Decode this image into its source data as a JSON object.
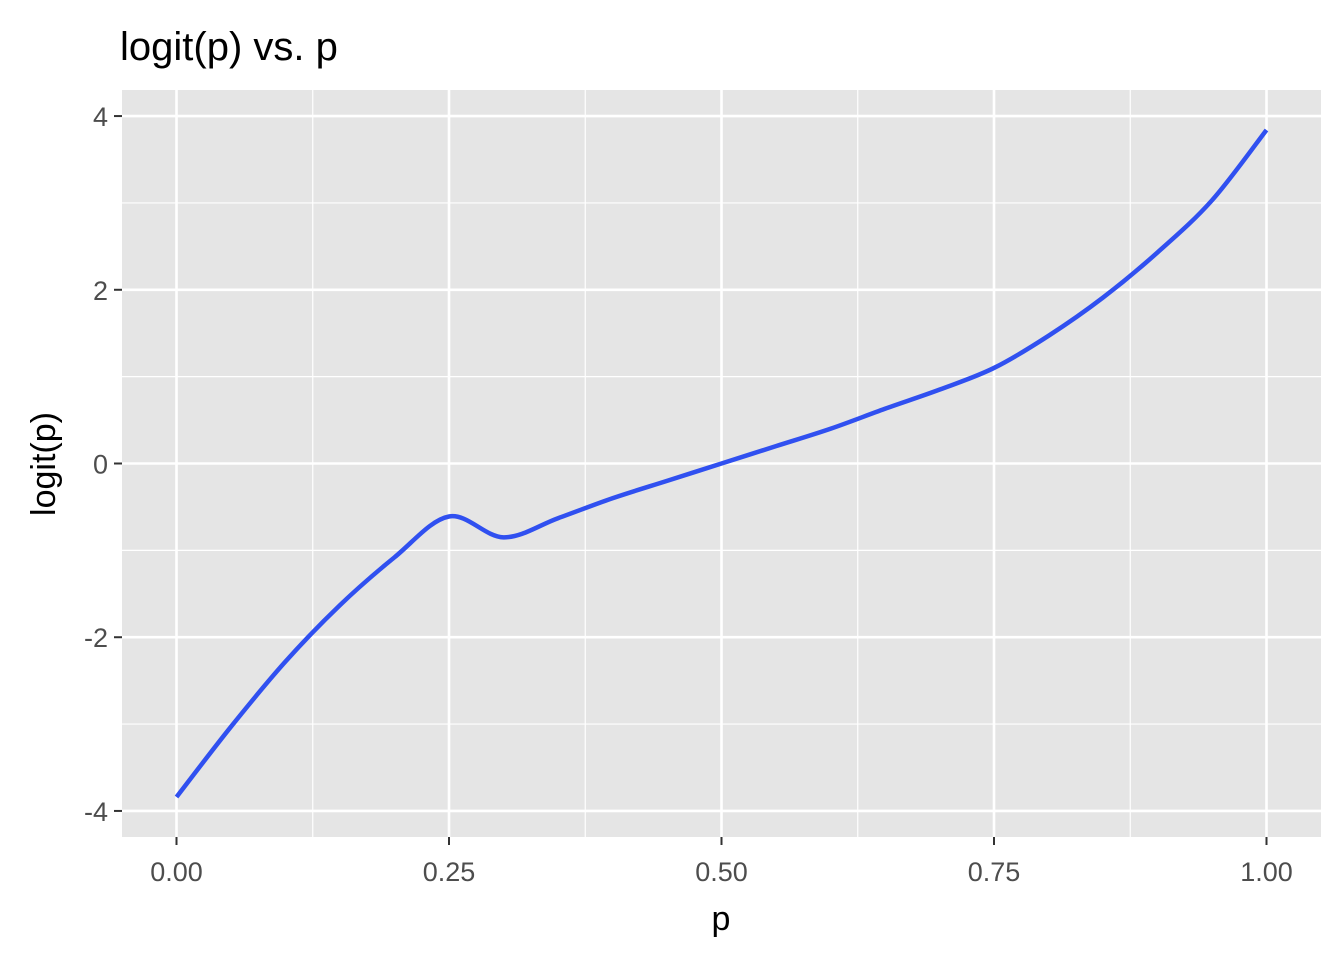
{
  "chart_data": {
    "type": "line",
    "title": "logit(p) vs. p",
    "xlabel": "p",
    "ylabel": "logit(p)",
    "xlim": [
      -0.05,
      1.05
    ],
    "ylim": [
      -4.3,
      4.3
    ],
    "x_ticks": [
      0.0,
      0.25,
      0.5,
      0.75,
      1.0
    ],
    "x_tick_labels": [
      "0.00",
      "0.25",
      "0.50",
      "0.75",
      "1.00"
    ],
    "y_ticks": [
      -4,
      -2,
      0,
      2,
      4
    ],
    "y_tick_labels": [
      "-4",
      "-2",
      "0",
      "2",
      "4"
    ],
    "x_minor_ticks": [
      0.125,
      0.375,
      0.625,
      0.875
    ],
    "y_minor_ticks": [
      -3,
      -1,
      1,
      3
    ],
    "grid": true,
    "background": "#e5e5e5",
    "series": [
      {
        "color": "#3050f0",
        "x": [
          0.0,
          0.05,
          0.1,
          0.15,
          0.2,
          0.25,
          0.3,
          0.35,
          0.4,
          0.45,
          0.5,
          0.55,
          0.6,
          0.65,
          0.7,
          0.75,
          0.8,
          0.85,
          0.9,
          0.95,
          1.0
        ],
        "y": [
          -3.84,
          -3.03,
          -2.28,
          -1.63,
          -1.08,
          -0.61,
          -0.85,
          -0.63,
          -0.4,
          -0.2,
          0.0,
          0.2,
          0.4,
          0.63,
          0.85,
          1.1,
          1.47,
          1.91,
          2.43,
          3.03,
          3.84
        ]
      }
    ]
  }
}
